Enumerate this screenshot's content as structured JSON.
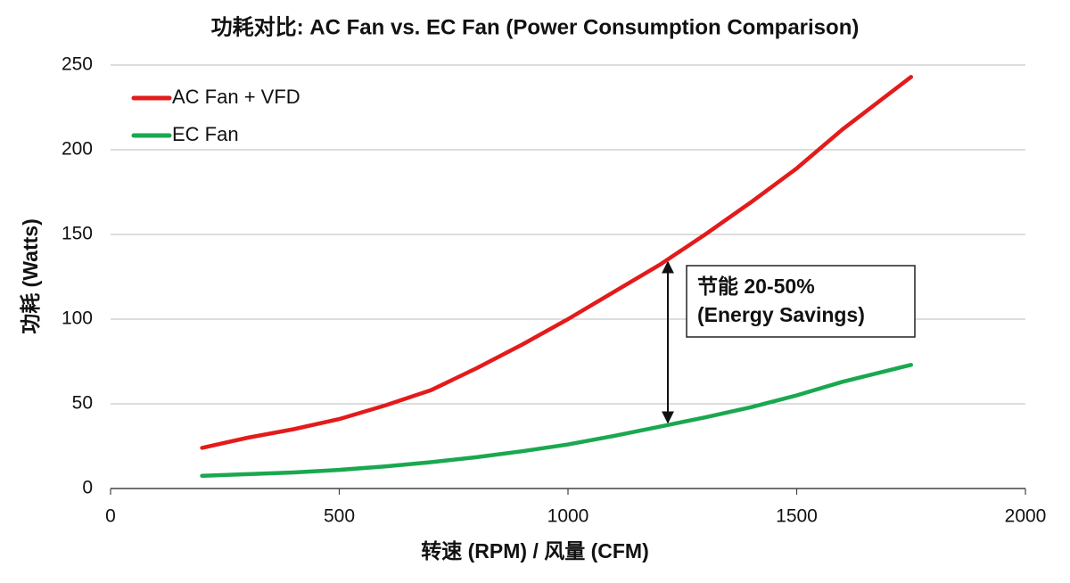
{
  "chart_data": {
    "type": "line",
    "title": "功耗对比: AC Fan vs. EC Fan (Power Consumption Comparison)",
    "x_label": "转速 (RPM)  / 风量 (CFM)",
    "y_label": "功耗 (Watts)",
    "x": [
      200,
      300,
      400,
      500,
      600,
      700,
      800,
      900,
      1000,
      1100,
      1200,
      1300,
      1400,
      1500,
      1600,
      1750
    ],
    "series": [
      {
        "name": "AC Fan + VFD",
        "color": "#e31b1b",
        "values": [
          24,
          30,
          35,
          41,
          49,
          58,
          71,
          85,
          100,
          116,
          132,
          150,
          169,
          189,
          212,
          243
        ]
      },
      {
        "name": "EC Fan",
        "color": "#1aa84f",
        "values": [
          7.5,
          8.5,
          9.5,
          11,
          13,
          15.5,
          18.5,
          22,
          26,
          31,
          36.5,
          42,
          48,
          55,
          63,
          73
        ]
      }
    ],
    "xlim": [
      0,
      2000
    ],
    "xticks": [
      0,
      500,
      1000,
      1500,
      2000
    ],
    "ylim": [
      0,
      250
    ],
    "yticks": [
      0,
      50,
      100,
      150,
      200,
      250
    ],
    "grid": true,
    "legend": "upper-left",
    "annotation": [
      "节能 20-50%",
      "(Energy Savings)"
    ]
  }
}
